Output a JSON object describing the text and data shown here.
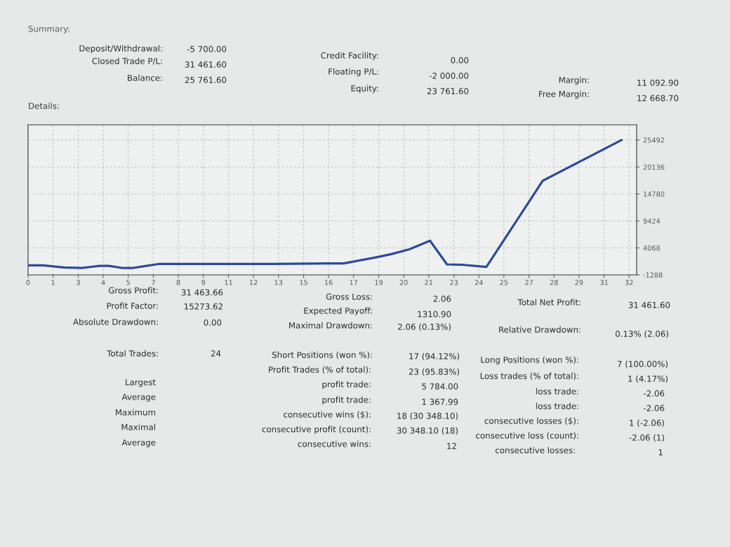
{
  "chart_data": {
    "type": "line",
    "title": "Details:",
    "x": [
      0,
      0.8,
      1.9,
      2.9,
      3.8,
      4.3,
      5.0,
      5.6,
      6.3,
      7.0,
      10.0,
      13.0,
      15.9,
      16.8,
      17.4,
      18.4,
      19.3,
      20.3,
      21.4,
      22.3,
      23.2,
      24.4,
      27.4,
      31.6
    ],
    "values": [
      600,
      600,
      200,
      100,
      500,
      500,
      100,
      100,
      500,
      900,
      900,
      900,
      1000,
      1000,
      1400,
      2100,
      2800,
      3800,
      5500,
      800,
      700,
      300,
      17400,
      25500
    ],
    "color": "#2d4a9a",
    "line_style": "solid",
    "grid": true,
    "xlim": [
      0,
      32.4
    ],
    "xticks": [
      0,
      {
        "value": 1.33,
        "label": "1"
      },
      {
        "value": 2.67,
        "label": "3"
      },
      4,
      {
        "value": 5.33,
        "label": "5"
      },
      {
        "value": 6.67,
        "label": "7"
      },
      8,
      {
        "value": 9.33,
        "label": "9"
      },
      {
        "value": 10.67,
        "label": "11"
      },
      12,
      {
        "value": 13.33,
        "label": "13"
      },
      {
        "value": 14.67,
        "label": "15"
      },
      16,
      {
        "value": 17.33,
        "label": "17"
      },
      {
        "value": 18.67,
        "label": "19"
      },
      20,
      {
        "value": 21.33,
        "label": "21"
      },
      {
        "value": 22.67,
        "label": "23"
      },
      24,
      {
        "value": 25.33,
        "label": "25"
      },
      {
        "value": 26.67,
        "label": "27"
      },
      28,
      {
        "value": 29.33,
        "label": "29"
      },
      {
        "value": 30.67,
        "label": "31"
      },
      32
    ],
    "ylim": [
      -1288,
      28500
    ],
    "yticks": [
      -1288,
      4068,
      9424,
      14780,
      20136,
      25492
    ],
    "annotations": [
      "Summary:",
      "Deposit/Withdrawal:",
      "-5 700.00",
      "Closed Trade P/L:",
      "31 461.60",
      "Balance:",
      "25 761.60",
      "Credit Facility:",
      "0.00",
      "Floating P/L:",
      "-2 000.00",
      "Equity:",
      "23 761.60",
      "Margin:",
      "11 092.90",
      "Free Margin:",
      "12 668.70",
      "Gross Profit:",
      "31 463.66",
      "Gross Loss:",
      "2.06",
      "Total Net Profit:",
      "31 461.60",
      "Profit Factor:",
      "15273.62",
      "Expected Payoff:",
      "1310.90",
      "Absolute Drawdown:",
      "0.00",
      "Maximal Drawdown:",
      "2.06 (0.13%)",
      "Relative Drawdown:",
      "0.13% (2.06)",
      "Total Trades:",
      "24",
      "Short Positions (won %):",
      "17 (94.12%)",
      "Long Positions (won %):",
      "7 (100.00%)",
      "Profit Trades (% of total):",
      "23 (95.83%)",
      "Loss trades (% of total):",
      "1 (4.17%)",
      "Largest",
      "profit trade:",
      "5 784.00",
      "loss trade:",
      "-2.06",
      "Average",
      "profit trade:",
      "1 367.99",
      "loss trade:",
      "-2.06",
      "Maximum",
      "consecutive wins ($):",
      "18 (30 348.10)",
      "consecutive losses ($):",
      "1 (-2.06)",
      "Maximal",
      "consecutive profit (count):",
      "30 348.10 (18)",
      "consecutive loss (count):",
      "-2.06 (1)",
      "Average",
      "consecutive wins:",
      "12",
      "consecutive losses:",
      "1"
    ]
  }
}
